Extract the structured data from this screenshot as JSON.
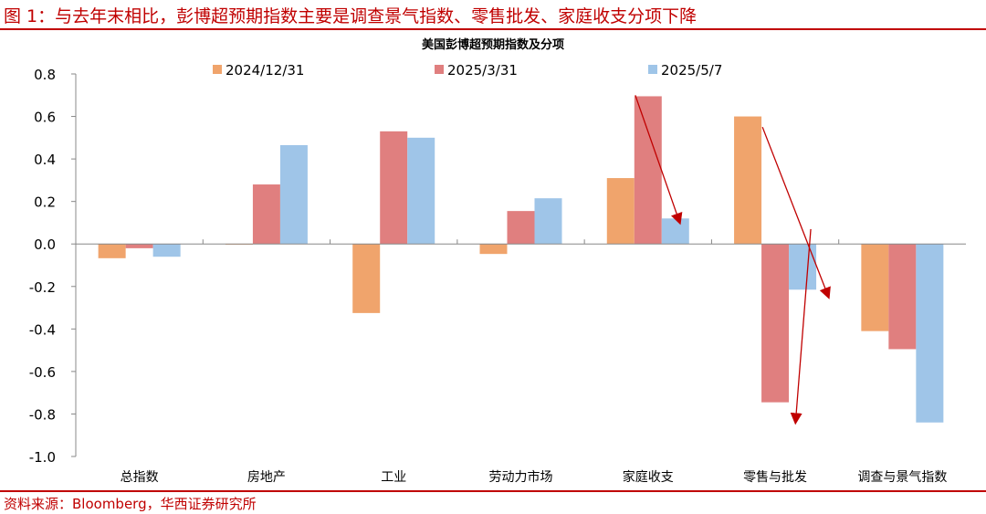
{
  "figure_title": "图 1：与去年末相比，彭博超预期指数主要是调查景气指数、零售批发、家庭收支分项下降",
  "source": "资料来源：Bloomberg，华西证券研究所",
  "chart_data": {
    "type": "bar",
    "title": "美国彭博超预期指数及分项",
    "categories": [
      "总指数",
      "房地产",
      "工业",
      "劳动力市场",
      "家庭收支",
      "零售与批发",
      "调查与景气指数"
    ],
    "series": [
      {
        "name": "2024/12/31",
        "color": "#f0a46c",
        "values": [
          -0.067,
          0.0,
          -0.325,
          -0.047,
          0.31,
          0.6,
          -0.41
        ]
      },
      {
        "name": "2025/3/31",
        "color": "#e07f7f",
        "values": [
          -0.02,
          0.28,
          0.53,
          0.155,
          0.695,
          -0.745,
          -0.495
        ]
      },
      {
        "name": "2025/5/7",
        "color": "#9fc5e8",
        "values": [
          -0.06,
          0.465,
          0.5,
          0.215,
          0.12,
          -0.215,
          -0.84
        ]
      }
    ],
    "ylim": [
      -1.0,
      0.8
    ],
    "yticks": [
      "0.8",
      "0.6",
      "0.4",
      "0.2",
      "0.0",
      "-0.2",
      "-0.4",
      "-0.6",
      "-0.8",
      "-1.0"
    ],
    "grid": false,
    "legend": "top",
    "annotations": {
      "arrow_color": "#c00000",
      "arrows": "downward red arrows over 家庭收支, 零售与批发, 调查与景气指数"
    }
  }
}
